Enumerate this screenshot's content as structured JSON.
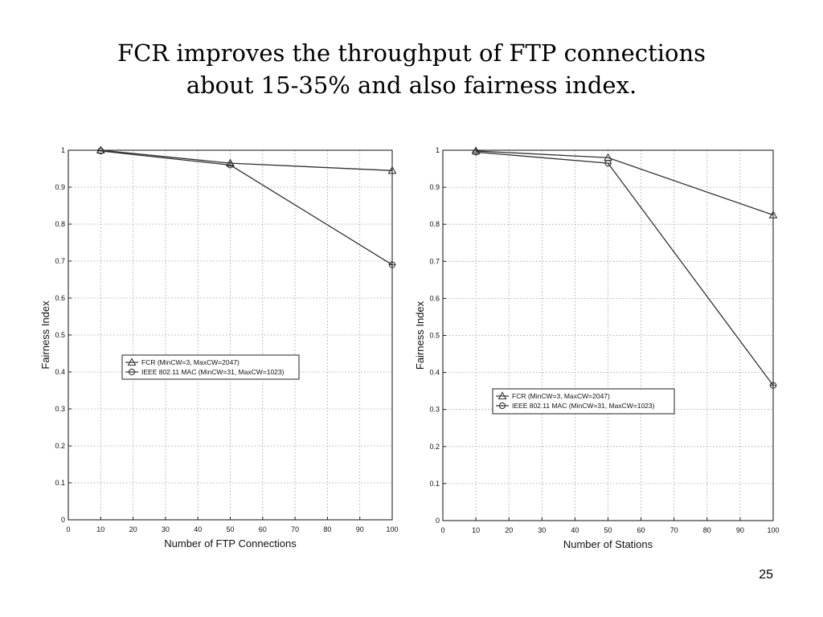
{
  "slide": {
    "title_line1": "FCR improves the throughput of FTP connections",
    "title_line2": "about 15-35% and also fairness index.",
    "page_number": "25"
  },
  "chart_data": [
    {
      "type": "line",
      "xlabel": "Number of FTP Connections",
      "ylabel": "Fairness Index",
      "xlim": [
        0,
        100
      ],
      "ylim": [
        0,
        1
      ],
      "xticks": [
        "0",
        "10",
        "20",
        "30",
        "40",
        "50",
        "60",
        "70",
        "80",
        "90",
        "100"
      ],
      "yticks": [
        "0",
        "0.1",
        "0.2",
        "0.3",
        "0.4",
        "0.5",
        "0.6",
        "0.7",
        "0.8",
        "0.9",
        "1"
      ],
      "grid": true,
      "legend_position": "center-left",
      "series": [
        {
          "name": "FCR (MinCW=3, MaxCW=2047)",
          "marker": "triangle",
          "x": [
            10,
            50,
            100
          ],
          "y": [
            1.0,
            0.965,
            0.945
          ]
        },
        {
          "name": "IEEE 802.11 MAC (MinCW=31, MaxCW=1023)",
          "marker": "diamond",
          "x": [
            10,
            50,
            100
          ],
          "y": [
            0.998,
            0.96,
            0.69
          ]
        }
      ]
    },
    {
      "type": "line",
      "xlabel": "Number of Stations",
      "ylabel": "Fairness Index",
      "xlim": [
        0,
        100
      ],
      "ylim": [
        0,
        1
      ],
      "xticks": [
        "0",
        "10",
        "20",
        "30",
        "40",
        "50",
        "60",
        "70",
        "80",
        "90",
        "100"
      ],
      "yticks": [
        "0",
        "0.1",
        "0.2",
        "0.3",
        "0.4",
        "0.5",
        "0.6",
        "0.7",
        "0.8",
        "0.9",
        "1"
      ],
      "grid": true,
      "legend_position": "bottom-center",
      "series": [
        {
          "name": "FCR (MinCW=3, MaxCW=2047)",
          "marker": "triangle",
          "x": [
            10,
            50,
            100
          ],
          "y": [
            0.998,
            0.98,
            0.825
          ]
        },
        {
          "name": "IEEE 802.11 MAC (MinCW=31, MaxCW=1023)",
          "marker": "diamond",
          "x": [
            10,
            50,
            100
          ],
          "y": [
            0.995,
            0.965,
            0.365
          ]
        }
      ]
    }
  ]
}
